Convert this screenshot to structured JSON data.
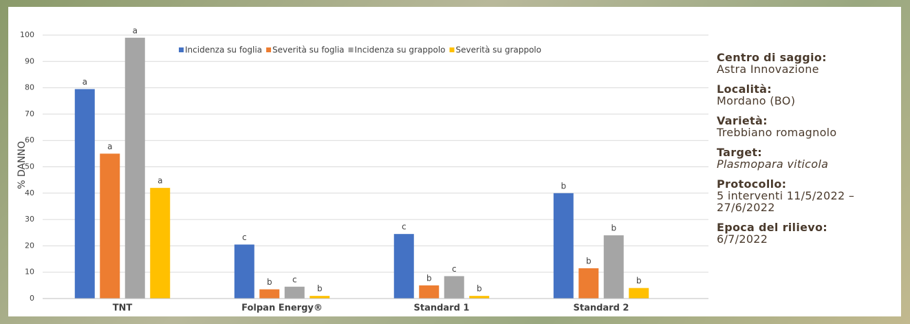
{
  "chart_data": {
    "type": "bar",
    "y_label": "% DANNO",
    "categories": [
      "TNT",
      "Folpan Energy®",
      "Standard 1",
      "Standard 2"
    ],
    "series": [
      {
        "name": "Incidenza su foglia",
        "color": "#4472c4",
        "values": [
          79.5,
          20.5,
          24.5,
          40
        ],
        "letters": [
          "a",
          "c",
          "c",
          "b"
        ]
      },
      {
        "name": "Severità su foglia",
        "color": "#ed7d31",
        "values": [
          55,
          3.5,
          5,
          11.5
        ],
        "letters": [
          "a",
          "b",
          "b",
          "b"
        ]
      },
      {
        "name": "Incidenza su grappolo",
        "color": "#a5a5a5",
        "values": [
          99,
          4.5,
          8.5,
          24
        ],
        "letters": [
          "a",
          "c",
          "c",
          "b"
        ]
      },
      {
        "name": "Severità su grappolo",
        "color": "#ffc000",
        "values": [
          42,
          1,
          1,
          4
        ],
        "letters": [
          "a",
          "b",
          "b",
          "b"
        ]
      }
    ],
    "ylim": [
      0,
      100
    ],
    "yticks": [
      0,
      10,
      20,
      30,
      40,
      50,
      60,
      70,
      80,
      90,
      100
    ],
    "grid": true
  },
  "info": [
    {
      "label": "Centro di saggio:",
      "value": "Astra Innovazione"
    },
    {
      "label": "Località:",
      "value": "Mordano (BO)"
    },
    {
      "label": "Varietà:",
      "value": "Trebbiano romagnolo"
    },
    {
      "label": "Target:",
      "value": "Plasmopara viticola",
      "italic": true
    },
    {
      "label": "Protocollo:",
      "value": "5 interventi 11/5/2022 – 27/6/2022"
    },
    {
      "label": "Epoca del rilievo:",
      "value": "6/7/2022"
    }
  ]
}
